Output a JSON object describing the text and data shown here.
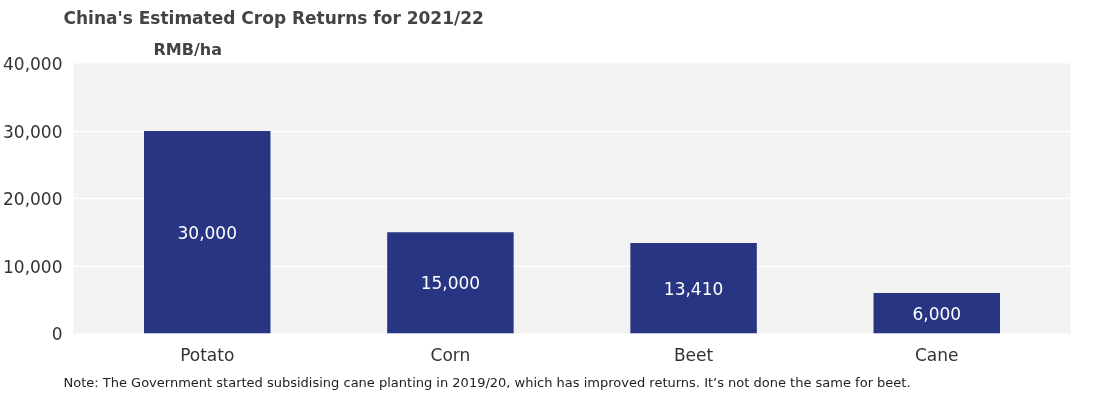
{
  "chart_data": {
    "type": "bar",
    "title": "China's Estimated Crop Returns for 2021/22",
    "ylabel": "RMB/ha",
    "categories": [
      "Potato",
      "Corn",
      "Beet",
      "Cane"
    ],
    "values": [
      30000,
      15000,
      13410,
      6000
    ],
    "color": "#283583",
    "ylim": [
      0,
      40000
    ],
    "yticks": [
      {
        "value": 0,
        "label": "0"
      },
      {
        "value": 10000,
        "label": "10,000"
      },
      {
        "value": 20000,
        "label": "20,000"
      },
      {
        "value": 30000,
        "label": "30,000"
      },
      {
        "value": 40000,
        "label": "40,000"
      }
    ],
    "grid": "y",
    "value_labels": [
      "30,000",
      "15,000",
      "13,410",
      "6,000"
    ],
    "annotations": [
      "Note: The Government started subsidising cane planting in 2019/20, which has improved returns. It’s not done the same for beet."
    ]
  }
}
